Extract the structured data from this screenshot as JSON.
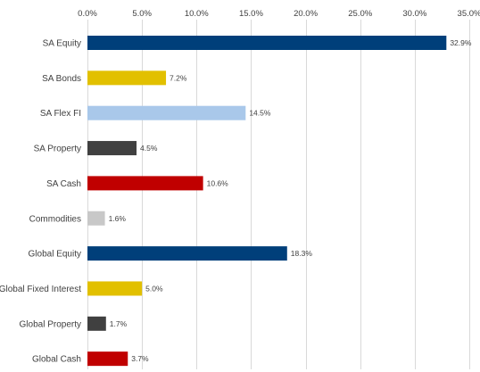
{
  "chart_data": {
    "type": "bar",
    "orientation": "horizontal",
    "title": "",
    "xlabel": "",
    "ylabel": "",
    "xlim": [
      0,
      35
    ],
    "x_ticks": [
      0,
      5,
      10,
      15,
      20,
      25,
      30,
      35
    ],
    "x_tick_labels": [
      "0.0%",
      "5.0%",
      "10.0%",
      "15.0%",
      "20.0%",
      "25.0%",
      "30.0%",
      "35.0%"
    ],
    "x_axis_position": "top",
    "grid": "vertical",
    "legend": "none",
    "categories": [
      "SA Equity",
      "SA Bonds",
      "SA Flex FI",
      "SA Property",
      "SA Cash",
      "Commodities",
      "Global Equity",
      "Global Fixed Interest",
      "Global Property",
      "Global Cash"
    ],
    "values": [
      32.9,
      7.2,
      14.5,
      4.5,
      10.6,
      1.6,
      18.3,
      5.0,
      1.7,
      3.7
    ],
    "value_labels": [
      "32.9%",
      "7.2%",
      "14.5%",
      "4.5%",
      "10.6%",
      "1.6%",
      "18.3%",
      "5.0%",
      "1.7%",
      "3.7%"
    ],
    "colors": [
      "#003f7a",
      "#e2c000",
      "#a9c8ea",
      "#404040",
      "#c00000",
      "#c8c8c8",
      "#003f7a",
      "#e2c000",
      "#404040",
      "#c00000"
    ]
  }
}
